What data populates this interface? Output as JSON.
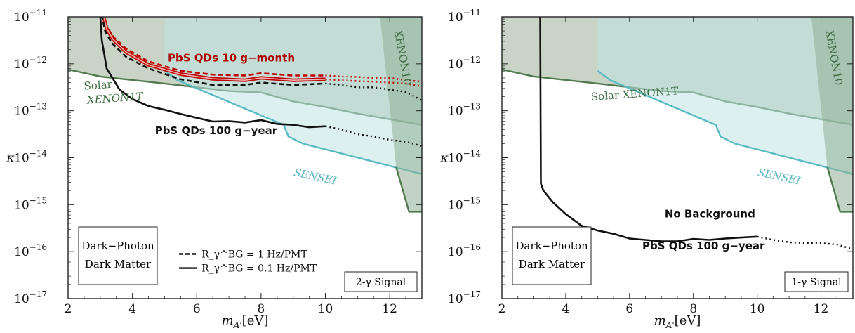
{
  "chart_data": [
    {
      "type": "line",
      "panel": "left",
      "xlabel": "m_{A'}[eV]",
      "ylabel": "κ",
      "xlim": [
        2,
        13
      ],
      "ylim_log10": [
        -17,
        -11
      ],
      "y_scale": "log",
      "x_ticks": [
        "2",
        "4",
        "6",
        "8",
        "10",
        "12"
      ],
      "x_tick_values": [
        2,
        4,
        6,
        8,
        10,
        12
      ],
      "y_ticks_exponents": [
        "-11",
        "-12",
        "-13",
        "-14",
        "-15",
        "-16",
        "-17"
      ],
      "y_tick_values": [
        -11,
        -12,
        -13,
        -14,
        -15,
        -16,
        -17
      ],
      "regions": [
        {
          "name": "XENON10",
          "label": "XENON10",
          "fill": "#8fae96",
          "stroke": "#4e7a4e",
          "points": [
            [
              11.7,
              -11
            ],
            [
              12.2,
              -14.2
            ],
            [
              12.6,
              -15.15
            ],
            [
              13,
              -15.15
            ],
            [
              13,
              -11
            ]
          ]
        },
        {
          "name": "SENSEI",
          "label": "SENSEI",
          "fill": "#bfe3e4",
          "stroke": "#5bbbc2",
          "points": [
            [
              5.0,
              -11
            ],
            [
              5.0,
              -12.15
            ],
            [
              5.4,
              -12.35
            ],
            [
              8.7,
              -13.3
            ],
            [
              8.85,
              -13.55
            ],
            [
              9.3,
              -13.7
            ],
            [
              13,
              -14.35
            ],
            [
              13,
              -11
            ]
          ]
        },
        {
          "name": "Solar XENON1T",
          "label_left": [
            "Solar",
            "XENON1T"
          ],
          "fill": "#c9d3c6",
          "stroke": "#4e7a4e",
          "points": [
            [
              2,
              -11
            ],
            [
              2,
              -12.12
            ],
            [
              3.0,
              -12.27
            ],
            [
              5.0,
              -12.42
            ],
            [
              7.0,
              -12.58
            ],
            [
              8.0,
              -12.61
            ],
            [
              9.0,
              -12.8
            ],
            [
              10.0,
              -12.92
            ],
            [
              11.0,
              -13.06
            ],
            [
              12.0,
              -13.18
            ],
            [
              13,
              -13.3
            ],
            [
              13,
              -11
            ]
          ]
        }
      ],
      "series": [
        {
          "name": "PbS QDs 10 g−month",
          "style": "dashed",
          "color": "#c00000",
          "x": [
            3.1,
            3.2,
            3.4,
            3.8,
            4.5,
            5.5,
            6.5,
            7.5,
            8.0,
            9.0,
            10.0
          ],
          "y": [
            -10.95,
            -11.2,
            -11.42,
            -11.68,
            -11.95,
            -12.15,
            -12.23,
            -12.25,
            -12.2,
            -12.25,
            -12.25
          ],
          "extrapolated": {
            "x": [
              10.0,
              10.5,
              11.0,
              11.5,
              12.0,
              12.5,
              13.0
            ],
            "y": [
              -12.25,
              -12.27,
              -12.28,
              -12.3,
              -12.3,
              -12.35,
              -12.38
            ]
          }
        },
        {
          "name": "PbS QDs 10 g−month",
          "style": "solid",
          "color": "#c00000",
          "x": [
            3.1,
            3.2,
            3.4,
            3.8,
            4.5,
            5.5,
            6.5,
            7.5,
            8.0,
            9.0,
            10.0
          ],
          "y": [
            -10.98,
            -11.25,
            -11.48,
            -11.75,
            -12.02,
            -12.22,
            -12.32,
            -12.35,
            -12.3,
            -12.35,
            -12.33
          ],
          "extrapolated": {
            "x": [
              10.0,
              10.5,
              11.0,
              11.5,
              12.0,
              12.5,
              13.0
            ],
            "y": [
              -12.33,
              -12.35,
              -12.37,
              -12.38,
              -12.4,
              -12.42,
              -12.48
            ]
          }
        },
        {
          "name": "PbS QDs 10 g−month",
          "style": "dashed",
          "color": "#111111",
          "x": [
            3.05,
            3.15,
            3.35,
            3.8,
            4.5,
            5.5,
            6.5,
            7.5,
            8.0,
            9.0,
            10.0
          ],
          "y": [
            -10.95,
            -11.3,
            -11.55,
            -11.85,
            -12.1,
            -12.33,
            -12.45,
            -12.45,
            -12.4,
            -12.45,
            -12.42
          ],
          "extrapolated": {
            "x": [
              10.0,
              10.5,
              11.0,
              11.5,
              12.0,
              12.5,
              13.0
            ],
            "y": [
              -12.42,
              -12.45,
              -12.5,
              -12.5,
              -12.55,
              -12.6,
              -12.78
            ]
          }
        },
        {
          "name": "PbS QDs 100 g−year",
          "style": "solid",
          "color": "#111111",
          "x": [
            3.0,
            3.05,
            3.2,
            3.6,
            4.0,
            4.5,
            5.0,
            5.5,
            6.0,
            6.5,
            7.0,
            7.5,
            8.0,
            8.5,
            9.0,
            9.5,
            10.0
          ],
          "y": [
            -10.95,
            -11.5,
            -12.1,
            -12.55,
            -12.75,
            -12.9,
            -12.98,
            -13.07,
            -13.15,
            -13.23,
            -13.22,
            -13.25,
            -13.2,
            -13.28,
            -13.3,
            -13.35,
            -13.33
          ],
          "extrapolated": {
            "x": [
              10.0,
              10.5,
              11.0,
              11.5,
              12.0,
              12.5,
              13.0
            ],
            "y": [
              -13.33,
              -13.4,
              -13.5,
              -13.55,
              -13.62,
              -13.66,
              -13.75
            ]
          }
        }
      ],
      "annotations": {
        "red_label": "PbS QDs 10 g−month",
        "black_label": "PbS QDs 100 g−year",
        "solar_line1": "Solar",
        "solar_line2": "XENON1T",
        "sensei": "SENSEI",
        "xenon10": "XENON10",
        "box_line1": "Dark−Photon",
        "box_line2": "Dark Matter",
        "legend_dashed": "R_γ^BG = 1 Hz/PMT",
        "legend_solid": "R_γ^BG = 0.1 Hz/PMT",
        "signal": "2-γ Signal"
      }
    },
    {
      "type": "line",
      "panel": "right",
      "xlabel": "m_{A'}[eV]",
      "ylabel": "κ",
      "xlim": [
        2,
        13
      ],
      "ylim_log10": [
        -17,
        -11
      ],
      "y_scale": "log",
      "x_ticks": [
        "2",
        "4",
        "6",
        "8",
        "10",
        "12"
      ],
      "x_tick_values": [
        2,
        4,
        6,
        8,
        10,
        12
      ],
      "y_ticks_exponents": [
        "-11",
        "-12",
        "-13",
        "-14",
        "-15",
        "-16",
        "-17"
      ],
      "y_tick_values": [
        -11,
        -12,
        -13,
        -14,
        -15,
        -16,
        -17
      ],
      "regions": [
        {
          "name": "XENON10",
          "label": "XENON10",
          "fill": "#8fae96",
          "stroke": "#4e7a4e",
          "points": [
            [
              11.7,
              -11
            ],
            [
              12.2,
              -14.2
            ],
            [
              12.6,
              -15.15
            ],
            [
              13,
              -15.15
            ],
            [
              13,
              -11
            ]
          ]
        },
        {
          "name": "SENSEI",
          "label": "SENSEI",
          "fill": "#bfe3e4",
          "stroke": "#5bbbc2",
          "points": [
            [
              5.0,
              -11
            ],
            [
              5.0,
              -12.15
            ],
            [
              5.4,
              -12.35
            ],
            [
              8.7,
              -13.3
            ],
            [
              8.85,
              -13.55
            ],
            [
              9.3,
              -13.7
            ],
            [
              13,
              -14.35
            ],
            [
              13,
              -11
            ]
          ]
        },
        {
          "name": "Solar XENON1T",
          "label_left": [
            "Solar XENON1T"
          ],
          "fill": "#c9d3c6",
          "stroke": "#4e7a4e",
          "points": [
            [
              2,
              -11
            ],
            [
              2,
              -12.12
            ],
            [
              3.0,
              -12.27
            ],
            [
              5.0,
              -12.42
            ],
            [
              7.0,
              -12.58
            ],
            [
              8.0,
              -12.61
            ],
            [
              9.0,
              -12.8
            ],
            [
              10.0,
              -12.92
            ],
            [
              11.0,
              -13.06
            ],
            [
              12.0,
              -13.18
            ],
            [
              13,
              -13.3
            ],
            [
              13,
              -11
            ]
          ]
        }
      ],
      "series": [
        {
          "name": "PbS QDs 100 g−year",
          "style": "solid",
          "color": "#111111",
          "x": [
            3.2,
            3.22,
            3.3,
            3.6,
            4.0,
            4.5,
            5.0,
            5.5,
            6.0,
            6.5,
            7.0,
            7.5,
            8.0,
            8.5,
            9.0,
            9.5,
            10.0
          ],
          "y": [
            -10.95,
            -14.55,
            -14.7,
            -14.95,
            -15.2,
            -15.45,
            -15.55,
            -15.62,
            -15.72,
            -15.75,
            -15.78,
            -15.78,
            -15.73,
            -15.75,
            -15.72,
            -15.7,
            -15.68
          ],
          "extrapolated": {
            "x": [
              10.0,
              10.5,
              11.0,
              11.5,
              12.0,
              12.5,
              13.0
            ],
            "y": [
              -15.68,
              -15.75,
              -15.8,
              -15.82,
              -15.82,
              -15.85,
              -15.95
            ]
          }
        }
      ],
      "annotations": {
        "no_background": "No Background",
        "black_label": "PbS QDs 100 g−year",
        "solar": "Solar XENON1T",
        "sensei": "SENSEI",
        "xenon10": "XENON10",
        "box_line1": "Dark−Photon",
        "box_line2": "Dark Matter",
        "signal": "1-γ Signal"
      }
    }
  ]
}
